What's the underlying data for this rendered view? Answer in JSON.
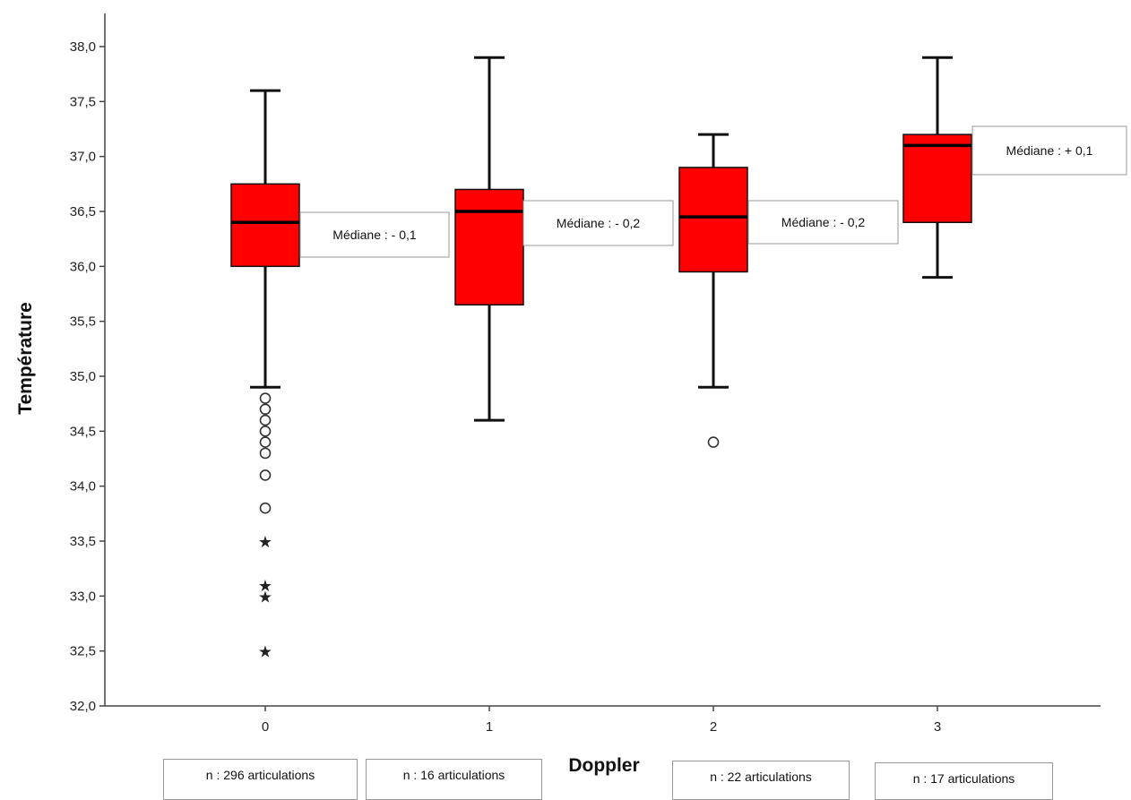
{
  "chart_data": {
    "type": "boxplot",
    "xlabel": "Doppler",
    "ylabel": "Température",
    "ylim": [
      32.0,
      38.0
    ],
    "yticks": [
      "32,0",
      "32,5",
      "33,0",
      "33,5",
      "34,0",
      "34,5",
      "35,0",
      "35,5",
      "36,0",
      "36,5",
      "37,0",
      "37,5",
      "38,0"
    ],
    "categories": [
      "0",
      "1",
      "2",
      "3"
    ],
    "box_color": "#ff0000",
    "boxes": [
      {
        "category": "0",
        "min": 34.9,
        "q1": 36.0,
        "median": 36.4,
        "q3": 36.75,
        "max": 37.6,
        "outliers": [
          34.8,
          34.7,
          34.6,
          34.5,
          34.4,
          34.3,
          34.1,
          33.8
        ],
        "extremes": [
          33.5,
          33.1,
          33.0,
          32.5
        ],
        "median_note": "Médiane : - 0,1",
        "count_note": "n : 296 articulations"
      },
      {
        "category": "1",
        "min": 34.6,
        "q1": 35.65,
        "median": 36.5,
        "q3": 36.7,
        "max": 37.9,
        "outliers": [],
        "extremes": [],
        "median_note": "Médiane : - 0,2",
        "count_note": "n : 16 articulations"
      },
      {
        "category": "2",
        "min": 34.9,
        "q1": 35.95,
        "median": 36.45,
        "q3": 36.9,
        "max": 37.2,
        "outliers": [
          34.4
        ],
        "extremes": [],
        "median_note": "Médiane : - 0,2",
        "count_note": "n : 22 articulations"
      },
      {
        "category": "3",
        "min": 35.9,
        "q1": 36.4,
        "median": 37.1,
        "q3": 37.2,
        "max": 37.9,
        "outliers": [],
        "extremes": [],
        "median_note": "Médiane : + 0,1",
        "count_note": "n : 17 articulations"
      }
    ]
  }
}
